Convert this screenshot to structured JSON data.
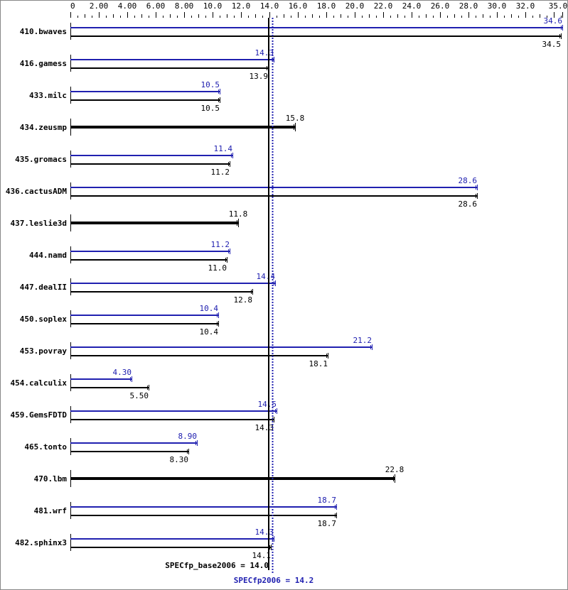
{
  "chart_data": {
    "type": "bar",
    "orientation": "horizontal",
    "xlim": [
      0,
      35.0
    ],
    "x_tick_labels": [
      "0",
      "2.00",
      "4.00",
      "6.00",
      "8.00",
      "10.0",
      "12.0",
      "14.0",
      "16.0",
      "18.0",
      "20.0",
      "22.0",
      "24.0",
      "26.0",
      "28.0",
      "30.0",
      "32.0",
      "35.0"
    ],
    "categories": [
      "410.bwaves",
      "416.gamess",
      "433.milc",
      "434.zeusmp",
      "435.gromacs",
      "436.cactusADM",
      "437.leslie3d",
      "444.namd",
      "447.dealII",
      "450.soplex",
      "453.povray",
      "454.calculix",
      "459.GemsFDTD",
      "465.tonto",
      "470.lbm",
      "481.wrf",
      "482.sphinx3"
    ],
    "series": [
      {
        "name": "SPECfp2006",
        "color": "#2020b0",
        "values": [
          34.6,
          14.3,
          10.5,
          15.8,
          11.4,
          28.6,
          11.8,
          11.2,
          14.4,
          10.4,
          21.2,
          4.3,
          14.5,
          8.9,
          22.8,
          18.7,
          14.3
        ],
        "labels": [
          "34.6",
          "14.3",
          "10.5",
          "15.8",
          "11.4",
          "28.6",
          "11.8",
          "11.2",
          "14.4",
          "10.4",
          "21.2",
          "4.30",
          "14.5",
          "8.90",
          "22.8",
          "18.7",
          "14.3"
        ]
      },
      {
        "name": "SPECfp_base2006",
        "color": "#000000",
        "values": [
          34.5,
          13.9,
          10.5,
          15.8,
          11.2,
          28.6,
          11.8,
          11.0,
          12.8,
          10.4,
          18.1,
          5.5,
          14.3,
          8.3,
          22.8,
          18.7,
          14.1
        ],
        "labels": [
          "34.5",
          "13.9",
          "10.5",
          "15.8",
          "11.2",
          "28.6",
          "11.8",
          "11.0",
          "12.8",
          "10.4",
          "18.1",
          "5.50",
          "14.3",
          "8.30",
          "22.8",
          "18.7",
          "14.1"
        ]
      }
    ],
    "single_bar": [
      false,
      false,
      false,
      true,
      false,
      false,
      true,
      false,
      false,
      false,
      false,
      false,
      false,
      false,
      true,
      false,
      false
    ],
    "reference_lines": [
      {
        "label": "SPECfp_base2006 = 14.0",
        "value": 14.0,
        "color": "#000000",
        "style": "solid"
      },
      {
        "label": "SPECfp2006 = 14.2",
        "value": 14.2,
        "color": "#2020b0",
        "style": "dotted"
      }
    ],
    "grid": false
  }
}
